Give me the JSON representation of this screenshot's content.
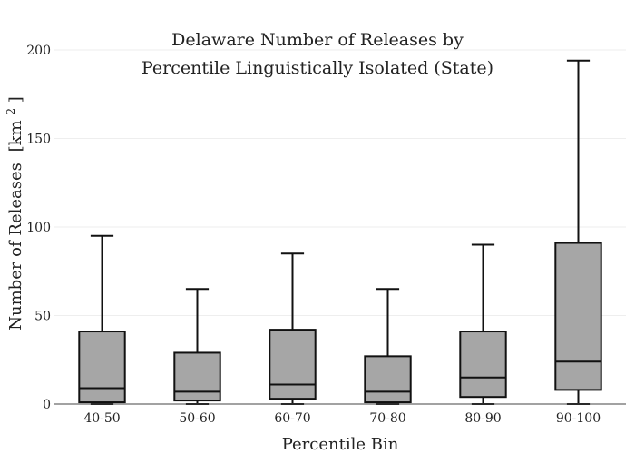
{
  "chart_data": {
    "type": "box",
    "title_lines": [
      "Delaware Number of Releases by",
      "Percentile Linguistically Isolated (State)"
    ],
    "xlabel": "Percentile Bin",
    "ylabel": "Number of Releases",
    "ylabel_unit": "[km",
    "ylabel_unit_sup": "2",
    "ylabel_unit_close": "]",
    "ylim": [
      0,
      200
    ],
    "yticks": [
      0,
      50,
      100,
      150,
      200
    ],
    "grid": true,
    "box_color": "#a6a6a6",
    "line_color": "#111111",
    "categories": [
      "40-50",
      "50-60",
      "60-70",
      "70-80",
      "80-90",
      "90-100"
    ],
    "boxes": [
      {
        "whisker_low": 0,
        "q1": 1,
        "median": 9,
        "q3": 41,
        "whisker_high": 95
      },
      {
        "whisker_low": 0,
        "q1": 2,
        "median": 7,
        "q3": 29,
        "whisker_high": 65
      },
      {
        "whisker_low": 0,
        "q1": 3,
        "median": 11,
        "q3": 42,
        "whisker_high": 85
      },
      {
        "whisker_low": 0,
        "q1": 1,
        "median": 7,
        "q3": 27,
        "whisker_high": 65
      },
      {
        "whisker_low": 0,
        "q1": 4,
        "median": 15,
        "q3": 41,
        "whisker_high": 90
      },
      {
        "whisker_low": 0,
        "q1": 8,
        "median": 24,
        "q3": 91,
        "whisker_high": 194
      }
    ]
  }
}
